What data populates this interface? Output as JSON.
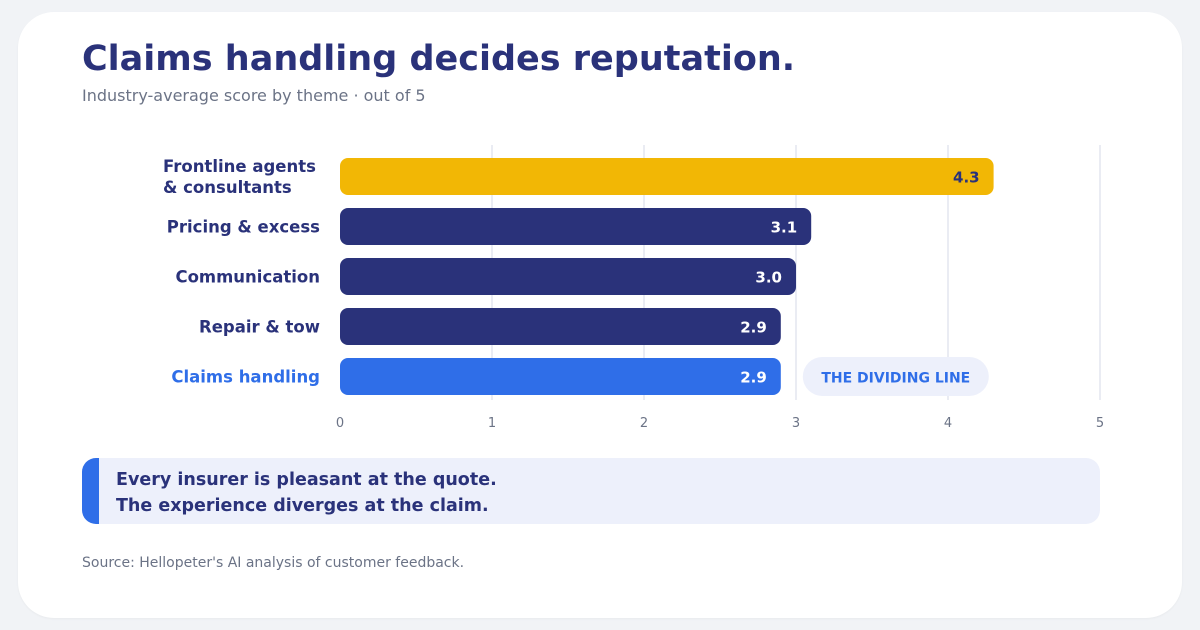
{
  "chart_data": {
    "type": "bar",
    "orientation": "horizontal",
    "title": "Claims handling decides reputation.",
    "subtitle": "Industry-average score by theme · out of 5",
    "categories": [
      [
        "Frontline agents",
        "& consultants"
      ],
      [
        "Pricing & excess"
      ],
      [
        "Communication"
      ],
      [
        "Repair & tow"
      ],
      [
        "Claims handling"
      ]
    ],
    "values": [
      4.3,
      3.1,
      3.0,
      2.9,
      2.9
    ],
    "value_labels": [
      "4.3",
      "3.1",
      "3.0",
      "2.9",
      "2.9"
    ],
    "bar_colors": [
      "#f2b705",
      "#2a327a",
      "#2a327a",
      "#2a327a",
      "#2f6ee8"
    ],
    "value_label_colors": [
      "#2a327a",
      "#ffffff",
      "#ffffff",
      "#ffffff",
      "#ffffff"
    ],
    "category_label_colors": [
      "#2a327a",
      "#2a327a",
      "#2a327a",
      "#2a327a",
      "#2f6ee8"
    ],
    "xlim": [
      0,
      5
    ],
    "xticks": [
      "0",
      "1",
      "2",
      "3",
      "4",
      "5"
    ],
    "grid": true,
    "legend": "none",
    "annotation": {
      "text": "THE DIVIDING LINE",
      "category": "Claims handling"
    },
    "colors": {
      "title": "#2a327a",
      "muted": "#6b7386",
      "grid": "#e3e6ef",
      "annotation_bg": "#edf0fb",
      "annotation_text": "#2f6ee8"
    }
  },
  "callout": {
    "line1": "Every insurer is pleasant at the quote.",
    "line2": "The experience diverges at the claim.",
    "accent_color": "#2f6ee8"
  },
  "source": "Source: Hellopeter's AI analysis of customer feedback."
}
